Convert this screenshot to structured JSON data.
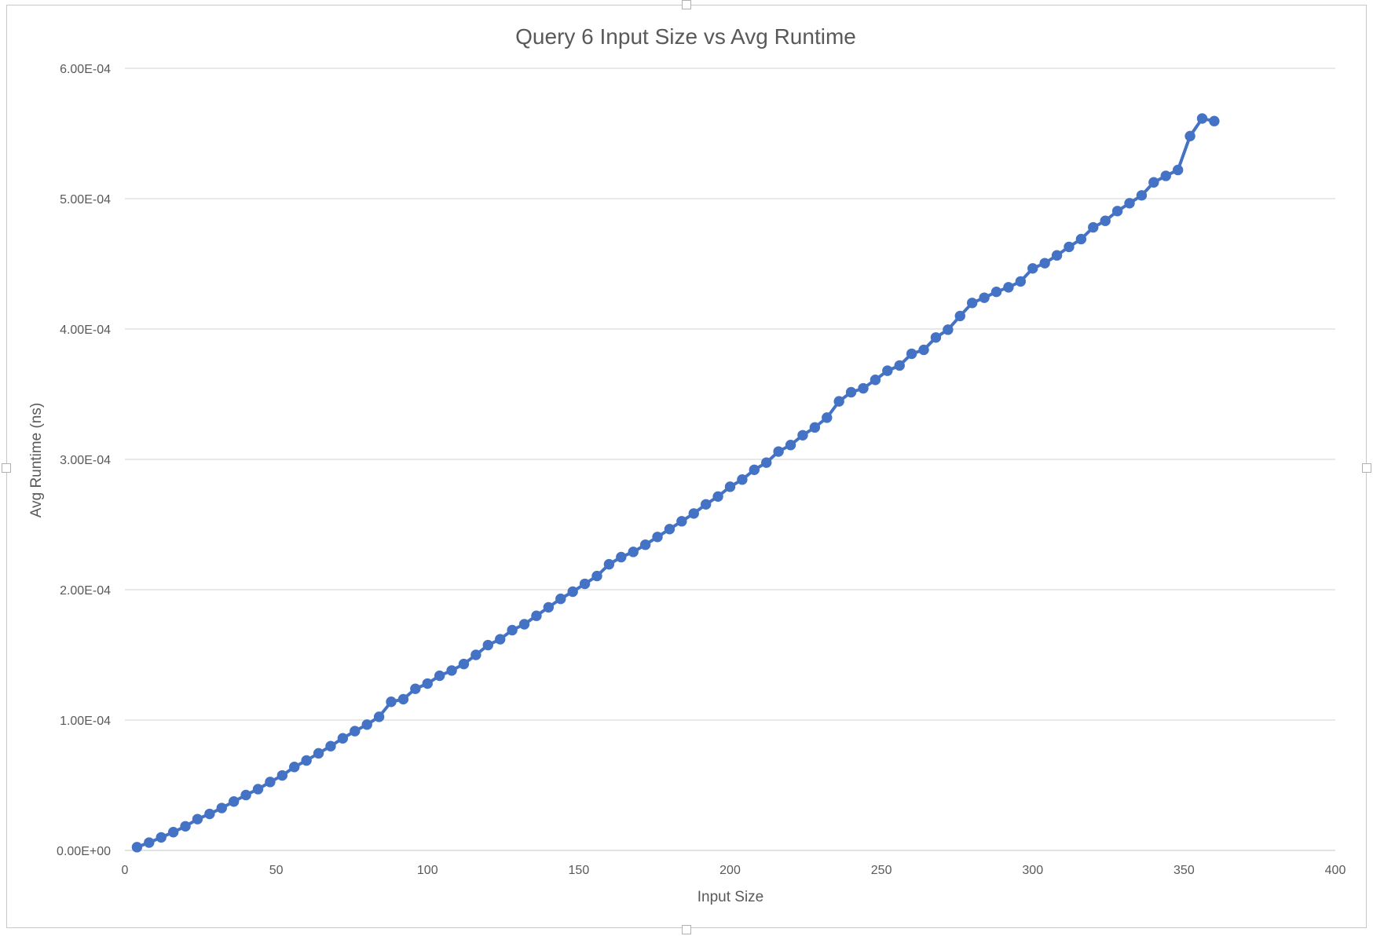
{
  "chart_data": {
    "type": "line",
    "title": "Query 6 Input Size vs Avg Runtime",
    "xlabel": "Input Size",
    "ylabel": "Avg Runtime (ns)",
    "xlim": [
      0,
      400
    ],
    "ylim": [
      0,
      0.0006
    ],
    "x_ticks": [
      0,
      50,
      100,
      150,
      200,
      250,
      300,
      350,
      400
    ],
    "x_tick_labels": [
      "0",
      "50",
      "100",
      "150",
      "200",
      "250",
      "300",
      "350",
      "400"
    ],
    "y_ticks": [
      0,
      0.0001,
      0.0002,
      0.0003,
      0.0004,
      0.0005,
      0.0006
    ],
    "y_tick_labels": [
      "0.00E+00",
      "1.00E-04",
      "2.00E-04",
      "3.00E-04",
      "4.00E-04",
      "5.00E-04",
      "6.00E-04"
    ],
    "grid": "horizontal",
    "legend": "none",
    "series_color": "#4472c4",
    "series": [
      {
        "x": [
          4,
          8,
          12,
          16,
          20,
          24,
          28,
          32,
          36,
          40,
          44,
          48,
          52,
          56,
          60,
          64,
          68,
          72,
          76,
          80,
          84,
          88,
          92,
          96,
          100,
          104,
          108,
          112,
          116,
          120,
          124,
          128,
          132,
          136,
          140,
          144,
          148,
          152,
          156,
          160,
          164,
          168,
          172,
          176,
          180,
          184,
          188,
          192,
          196,
          200,
          204,
          208,
          212,
          216,
          220,
          224,
          228,
          232,
          236,
          240,
          244,
          248,
          252,
          256,
          260,
          264,
          268,
          272,
          276,
          280,
          284,
          288,
          292,
          296,
          300,
          304,
          308,
          312,
          316,
          320,
          324,
          328,
          332,
          336,
          340,
          344,
          348,
          352,
          356,
          360
        ],
        "y": [
          2.5e-06,
          6e-06,
          1e-05,
          1.4e-05,
          1.85e-05,
          2.4e-05,
          2.8e-05,
          3.25e-05,
          3.75e-05,
          4.25e-05,
          4.7e-05,
          5.25e-05,
          5.75e-05,
          6.4e-05,
          6.9e-05,
          7.45e-05,
          8e-05,
          8.6e-05,
          9.15e-05,
          9.65e-05,
          0.0001025,
          0.000114,
          0.000116,
          0.000124,
          0.000128,
          0.000134,
          0.000138,
          0.000143,
          0.00015,
          0.0001575,
          0.000162,
          0.000169,
          0.0001735,
          0.00018,
          0.0001865,
          0.000193,
          0.0001985,
          0.0002045,
          0.0002105,
          0.0002195,
          0.000225,
          0.000229,
          0.0002345,
          0.0002405,
          0.0002465,
          0.0002525,
          0.0002585,
          0.0002655,
          0.0002715,
          0.000279,
          0.0002845,
          0.000292,
          0.0002975,
          0.000306,
          0.000311,
          0.0003185,
          0.0003245,
          0.000332,
          0.0003445,
          0.0003515,
          0.0003545,
          0.000361,
          0.000368,
          0.000372,
          0.000381,
          0.000384,
          0.0003935,
          0.0003995,
          0.00041,
          0.00042,
          0.000424,
          0.0004285,
          0.000432,
          0.0004365,
          0.0004465,
          0.0004505,
          0.0004565,
          0.000463,
          0.000469,
          0.000478,
          0.000483,
          0.0004905,
          0.0004965,
          0.0005025,
          0.0005125,
          0.0005175,
          0.000522,
          0.000548,
          0.0005615,
          0.0005595
        ]
      }
    ]
  }
}
